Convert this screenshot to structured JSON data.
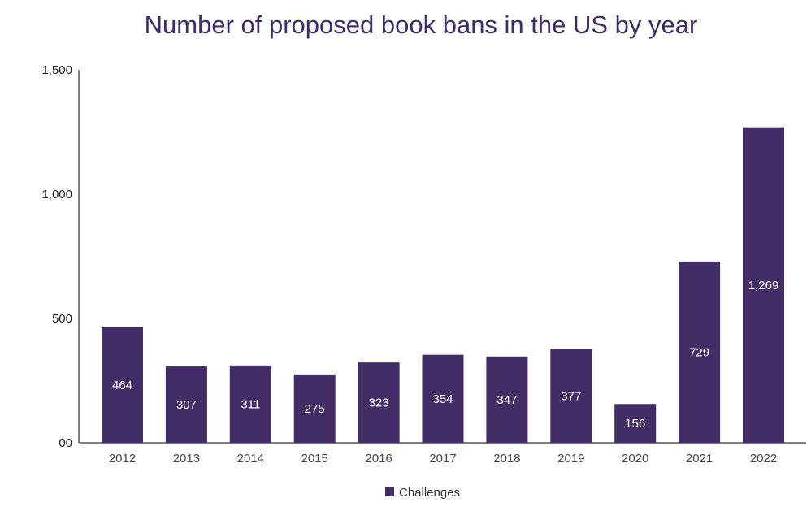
{
  "chart_data": {
    "type": "bar",
    "title": "Number of proposed book bans in the US by year",
    "xlabel": "",
    "ylabel": "",
    "categories": [
      "2012",
      "2013",
      "2014",
      "2015",
      "2016",
      "2017",
      "2018",
      "2019",
      "2020",
      "2021",
      "2022"
    ],
    "series": [
      {
        "name": "Challenges",
        "values": [
          464,
          307,
          311,
          275,
          323,
          354,
          347,
          377,
          156,
          729,
          1269
        ],
        "labels": [
          "464",
          "307",
          "311",
          "275",
          "323",
          "354",
          "347",
          "377",
          "156",
          "729",
          "1,269"
        ],
        "color": "#422d66"
      }
    ],
    "ylim": [
      0,
      1500
    ],
    "yticks": [
      0,
      500,
      1000,
      1500
    ],
    "ytick_labels": [
      "00",
      "500",
      "1,000",
      "1,500"
    ],
    "grid": false,
    "legend": {
      "position": "bottom-center"
    },
    "colors": {
      "title": "#3f2b67",
      "bar": "#422d66"
    }
  }
}
